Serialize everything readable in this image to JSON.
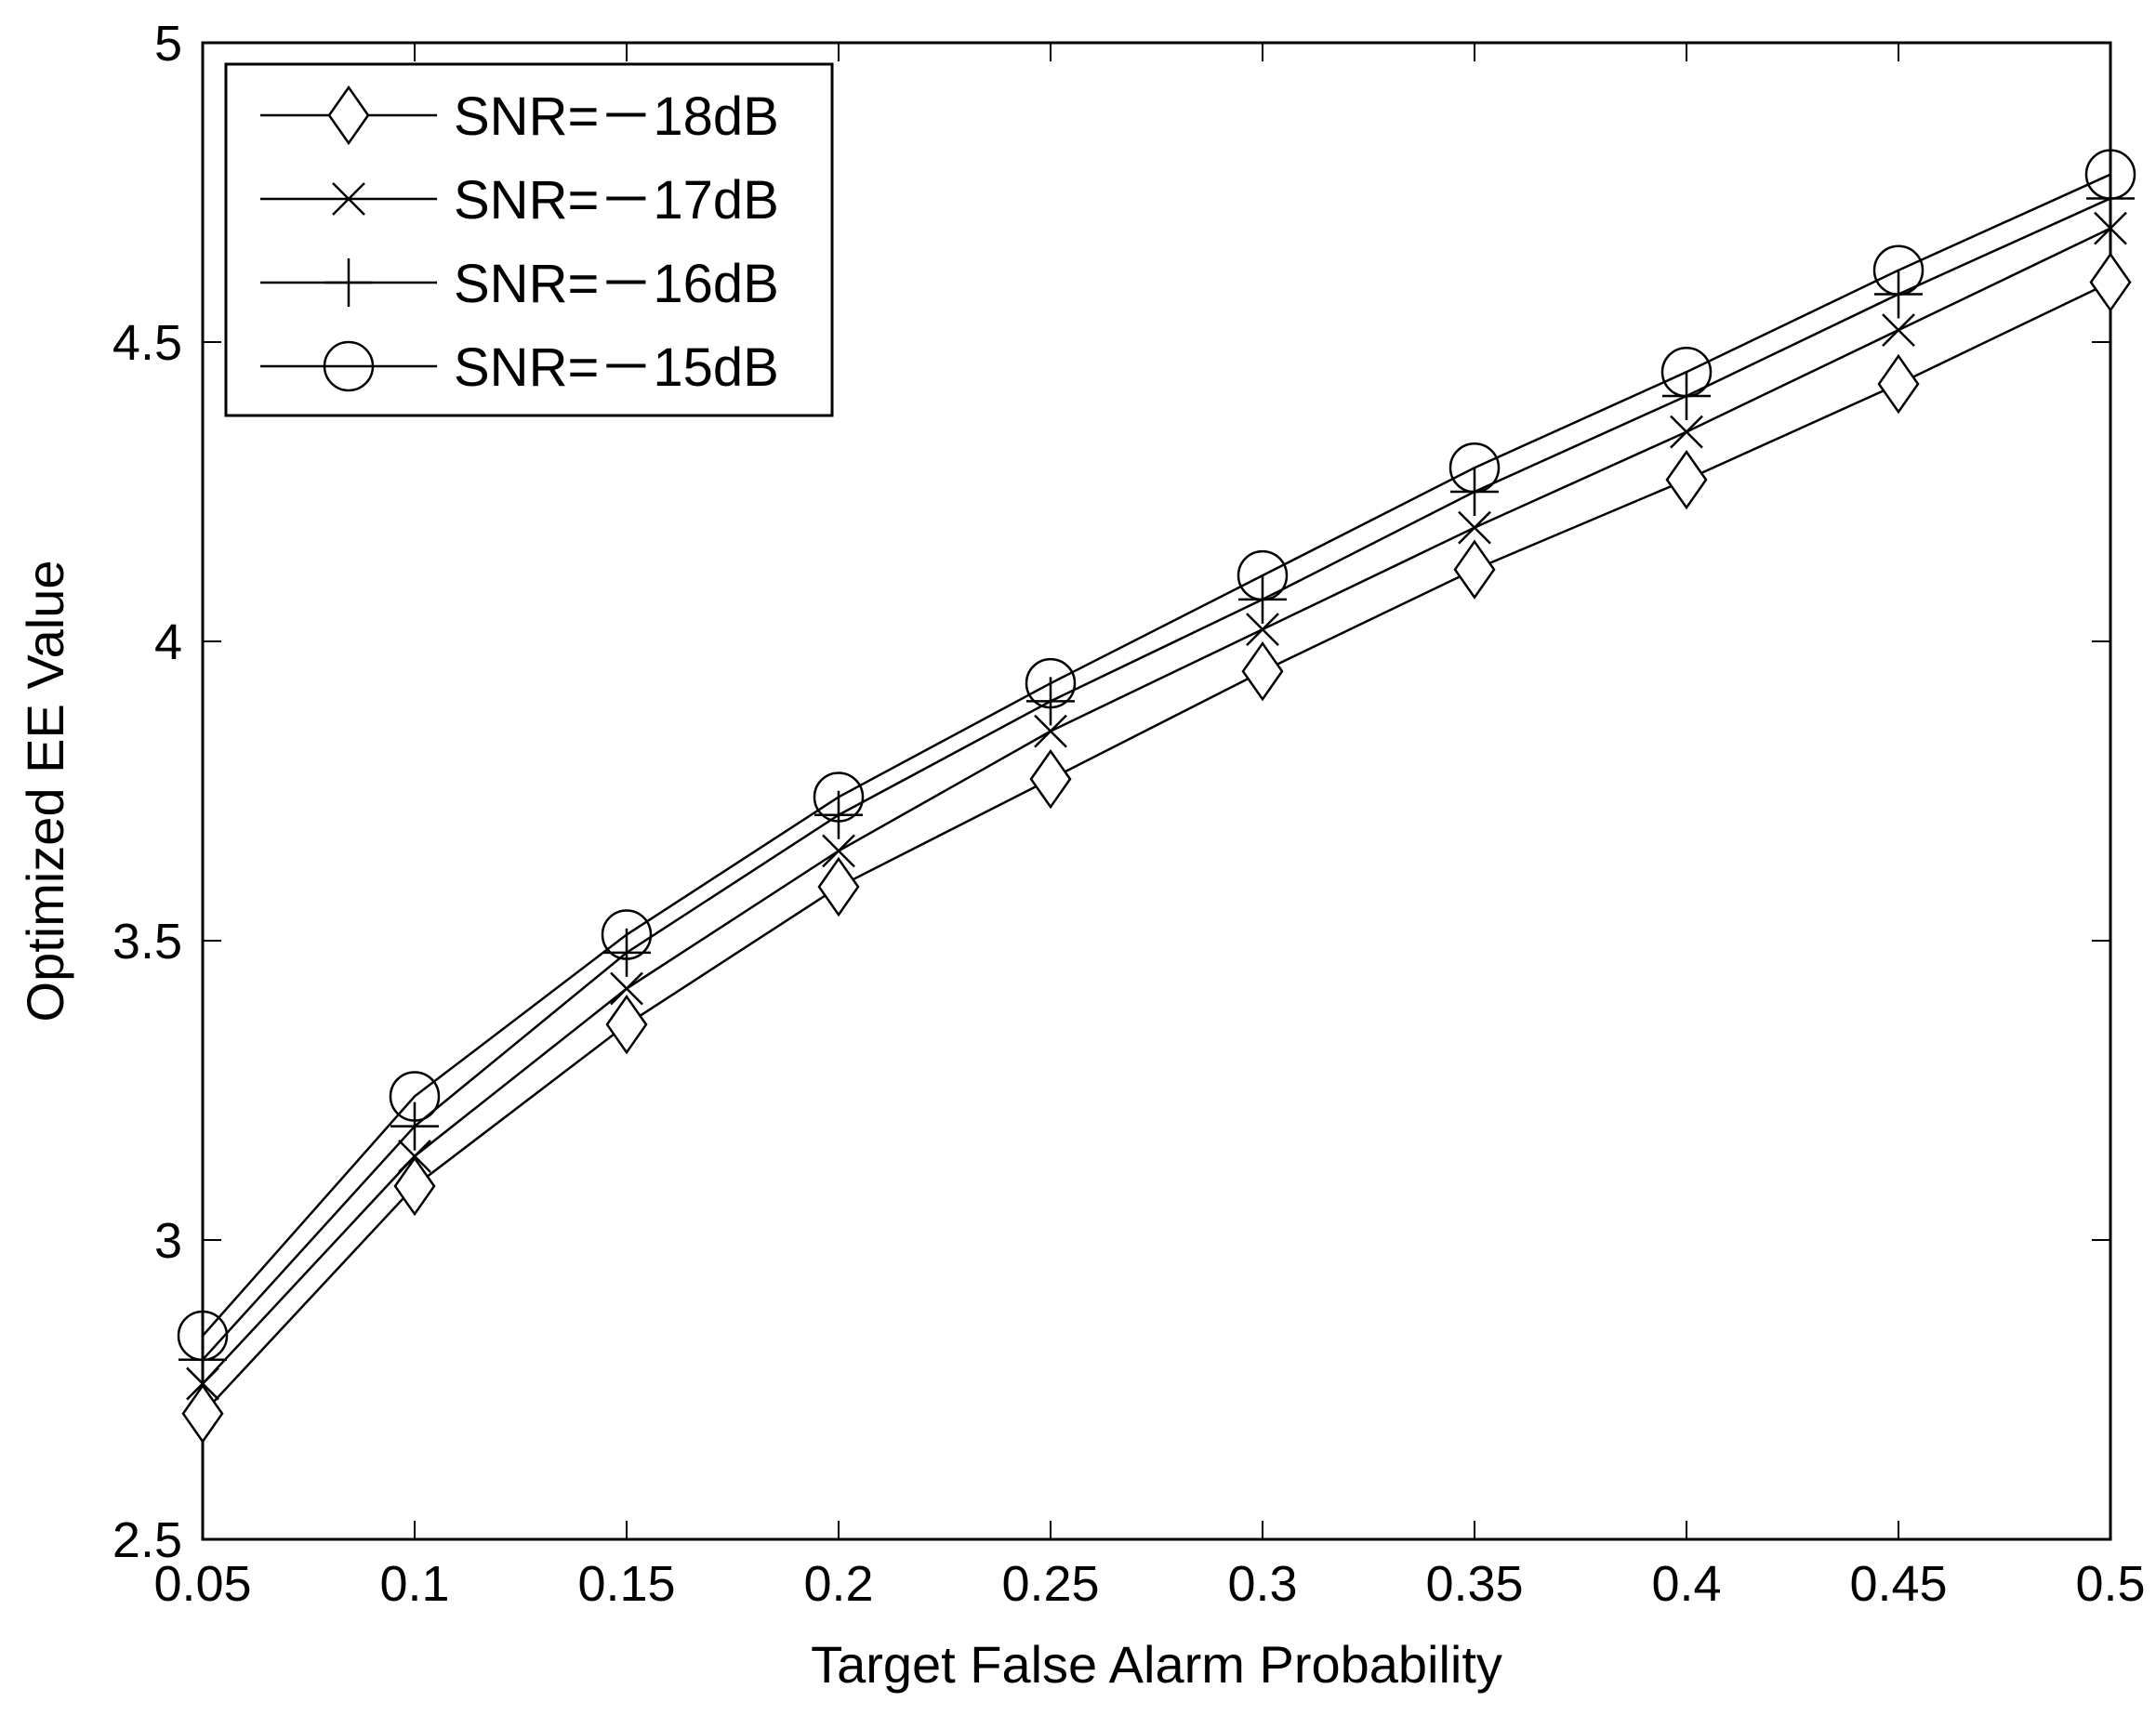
{
  "chart_data": {
    "type": "line",
    "title": "",
    "xlabel": "Target False Alarm Probability",
    "ylabel": "Optimized EE Value",
    "xlim": [
      0.05,
      0.5
    ],
    "ylim": [
      2.5,
      5
    ],
    "x_ticks": [
      "0.05",
      "0.1",
      "0.15",
      "0.2",
      "0.25",
      "0.3",
      "0.35",
      "0.4",
      "0.45",
      "0.5"
    ],
    "y_ticks": [
      "2.5",
      "3",
      "3.5",
      "4",
      "4.5",
      "5"
    ],
    "grid": false,
    "legend_position": "top-left",
    "x": [
      0.05,
      0.1,
      0.15,
      0.2,
      0.25,
      0.3,
      0.35,
      0.4,
      0.45,
      0.5
    ],
    "series": [
      {
        "name": "SNR=－18dB",
        "marker": "diamond",
        "values": [
          2.71,
          3.09,
          3.36,
          3.59,
          3.77,
          3.95,
          4.12,
          4.27,
          4.43,
          4.6
        ]
      },
      {
        "name": "SNR=－17dB",
        "marker": "x",
        "values": [
          2.76,
          3.14,
          3.42,
          3.65,
          3.85,
          4.02,
          4.19,
          4.35,
          4.52,
          4.69
        ]
      },
      {
        "name": "SNR=－16dB",
        "marker": "plus",
        "values": [
          2.8,
          3.19,
          3.48,
          3.71,
          3.9,
          4.07,
          4.25,
          4.41,
          4.58,
          4.74
        ]
      },
      {
        "name": "SNR=－15dB",
        "marker": "circle",
        "values": [
          2.84,
          3.24,
          3.51,
          3.74,
          3.93,
          4.11,
          4.29,
          4.45,
          4.62,
          4.78
        ]
      }
    ],
    "colors": {
      "line": "#000000",
      "background": "#ffffff"
    }
  }
}
